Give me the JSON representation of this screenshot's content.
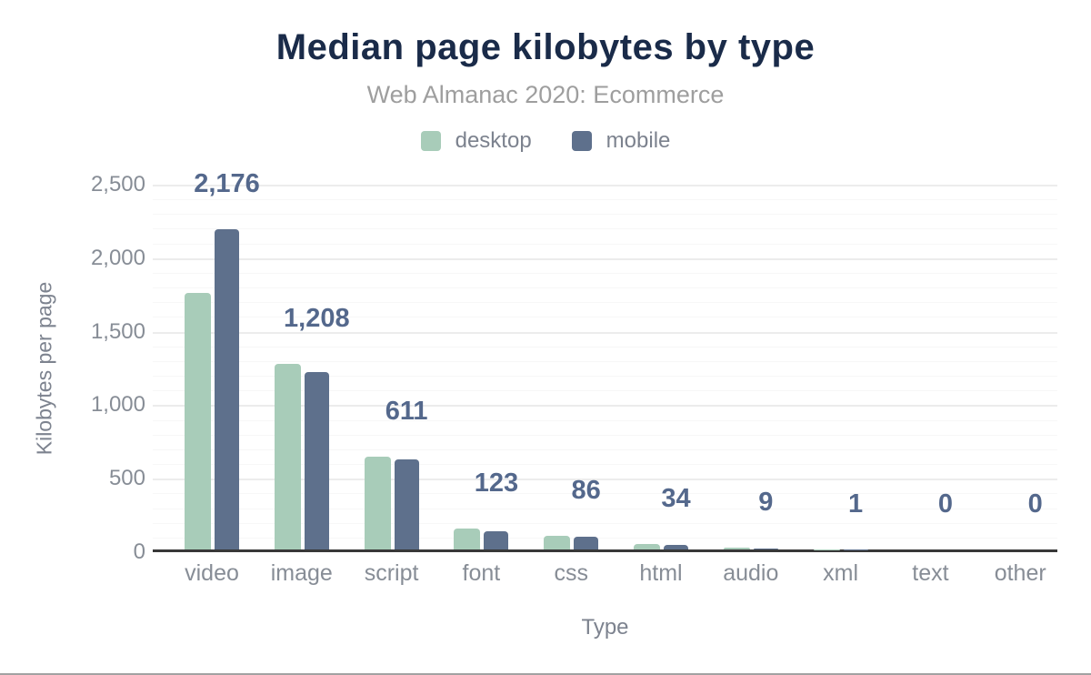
{
  "chart_data": {
    "type": "bar",
    "title": "Median page kilobytes by type",
    "subtitle": "Web Almanac 2020: Ecommerce",
    "xlabel": "Type",
    "ylabel": "Kilobytes per page",
    "categories": [
      "video",
      "image",
      "script",
      "font",
      "css",
      "html",
      "audio",
      "xml",
      "text",
      "other"
    ],
    "series": [
      {
        "name": "desktop",
        "color": "#a8ccb9",
        "values": [
          1745,
          1262,
          631,
          140,
          90,
          37,
          15,
          1,
          0,
          0
        ]
      },
      {
        "name": "mobile",
        "color": "#5e708c",
        "values": [
          2176,
          1208,
          611,
          123,
          86,
          34,
          9,
          1,
          0,
          0
        ]
      }
    ],
    "annotations": {
      "series": "mobile",
      "labels": [
        "2,176",
        "1,208",
        "611",
        "123",
        "86",
        "34",
        "9",
        "1",
        "0",
        "0"
      ]
    },
    "legend": [
      {
        "label": "desktop",
        "color": "#a8ccb9"
      },
      {
        "label": "mobile",
        "color": "#5e708c"
      }
    ],
    "legend_position": "top",
    "ylim": [
      0,
      2500
    ],
    "yticks": [
      {
        "v": 0,
        "label": "0"
      },
      {
        "v": 500,
        "label": "500"
      },
      {
        "v": 1000,
        "label": "1,000"
      },
      {
        "v": 1500,
        "label": "1,500"
      },
      {
        "v": 2000,
        "label": "2,000"
      },
      {
        "v": 2500,
        "label": "2,500"
      }
    ],
    "grid": {
      "on": true,
      "major_step": 500,
      "minor_step": 100
    }
  },
  "colors": {
    "title": "#1a2b49",
    "subtitle": "#9e9e9e",
    "annotation": "#54688c",
    "axis_text": "#878d96",
    "axis_line": "#383838",
    "gridline_major": "#ececec",
    "gridline_minor": "#f7f7f7",
    "desktop_bar": "#a8ccb9",
    "mobile_bar": "#5e708c"
  }
}
